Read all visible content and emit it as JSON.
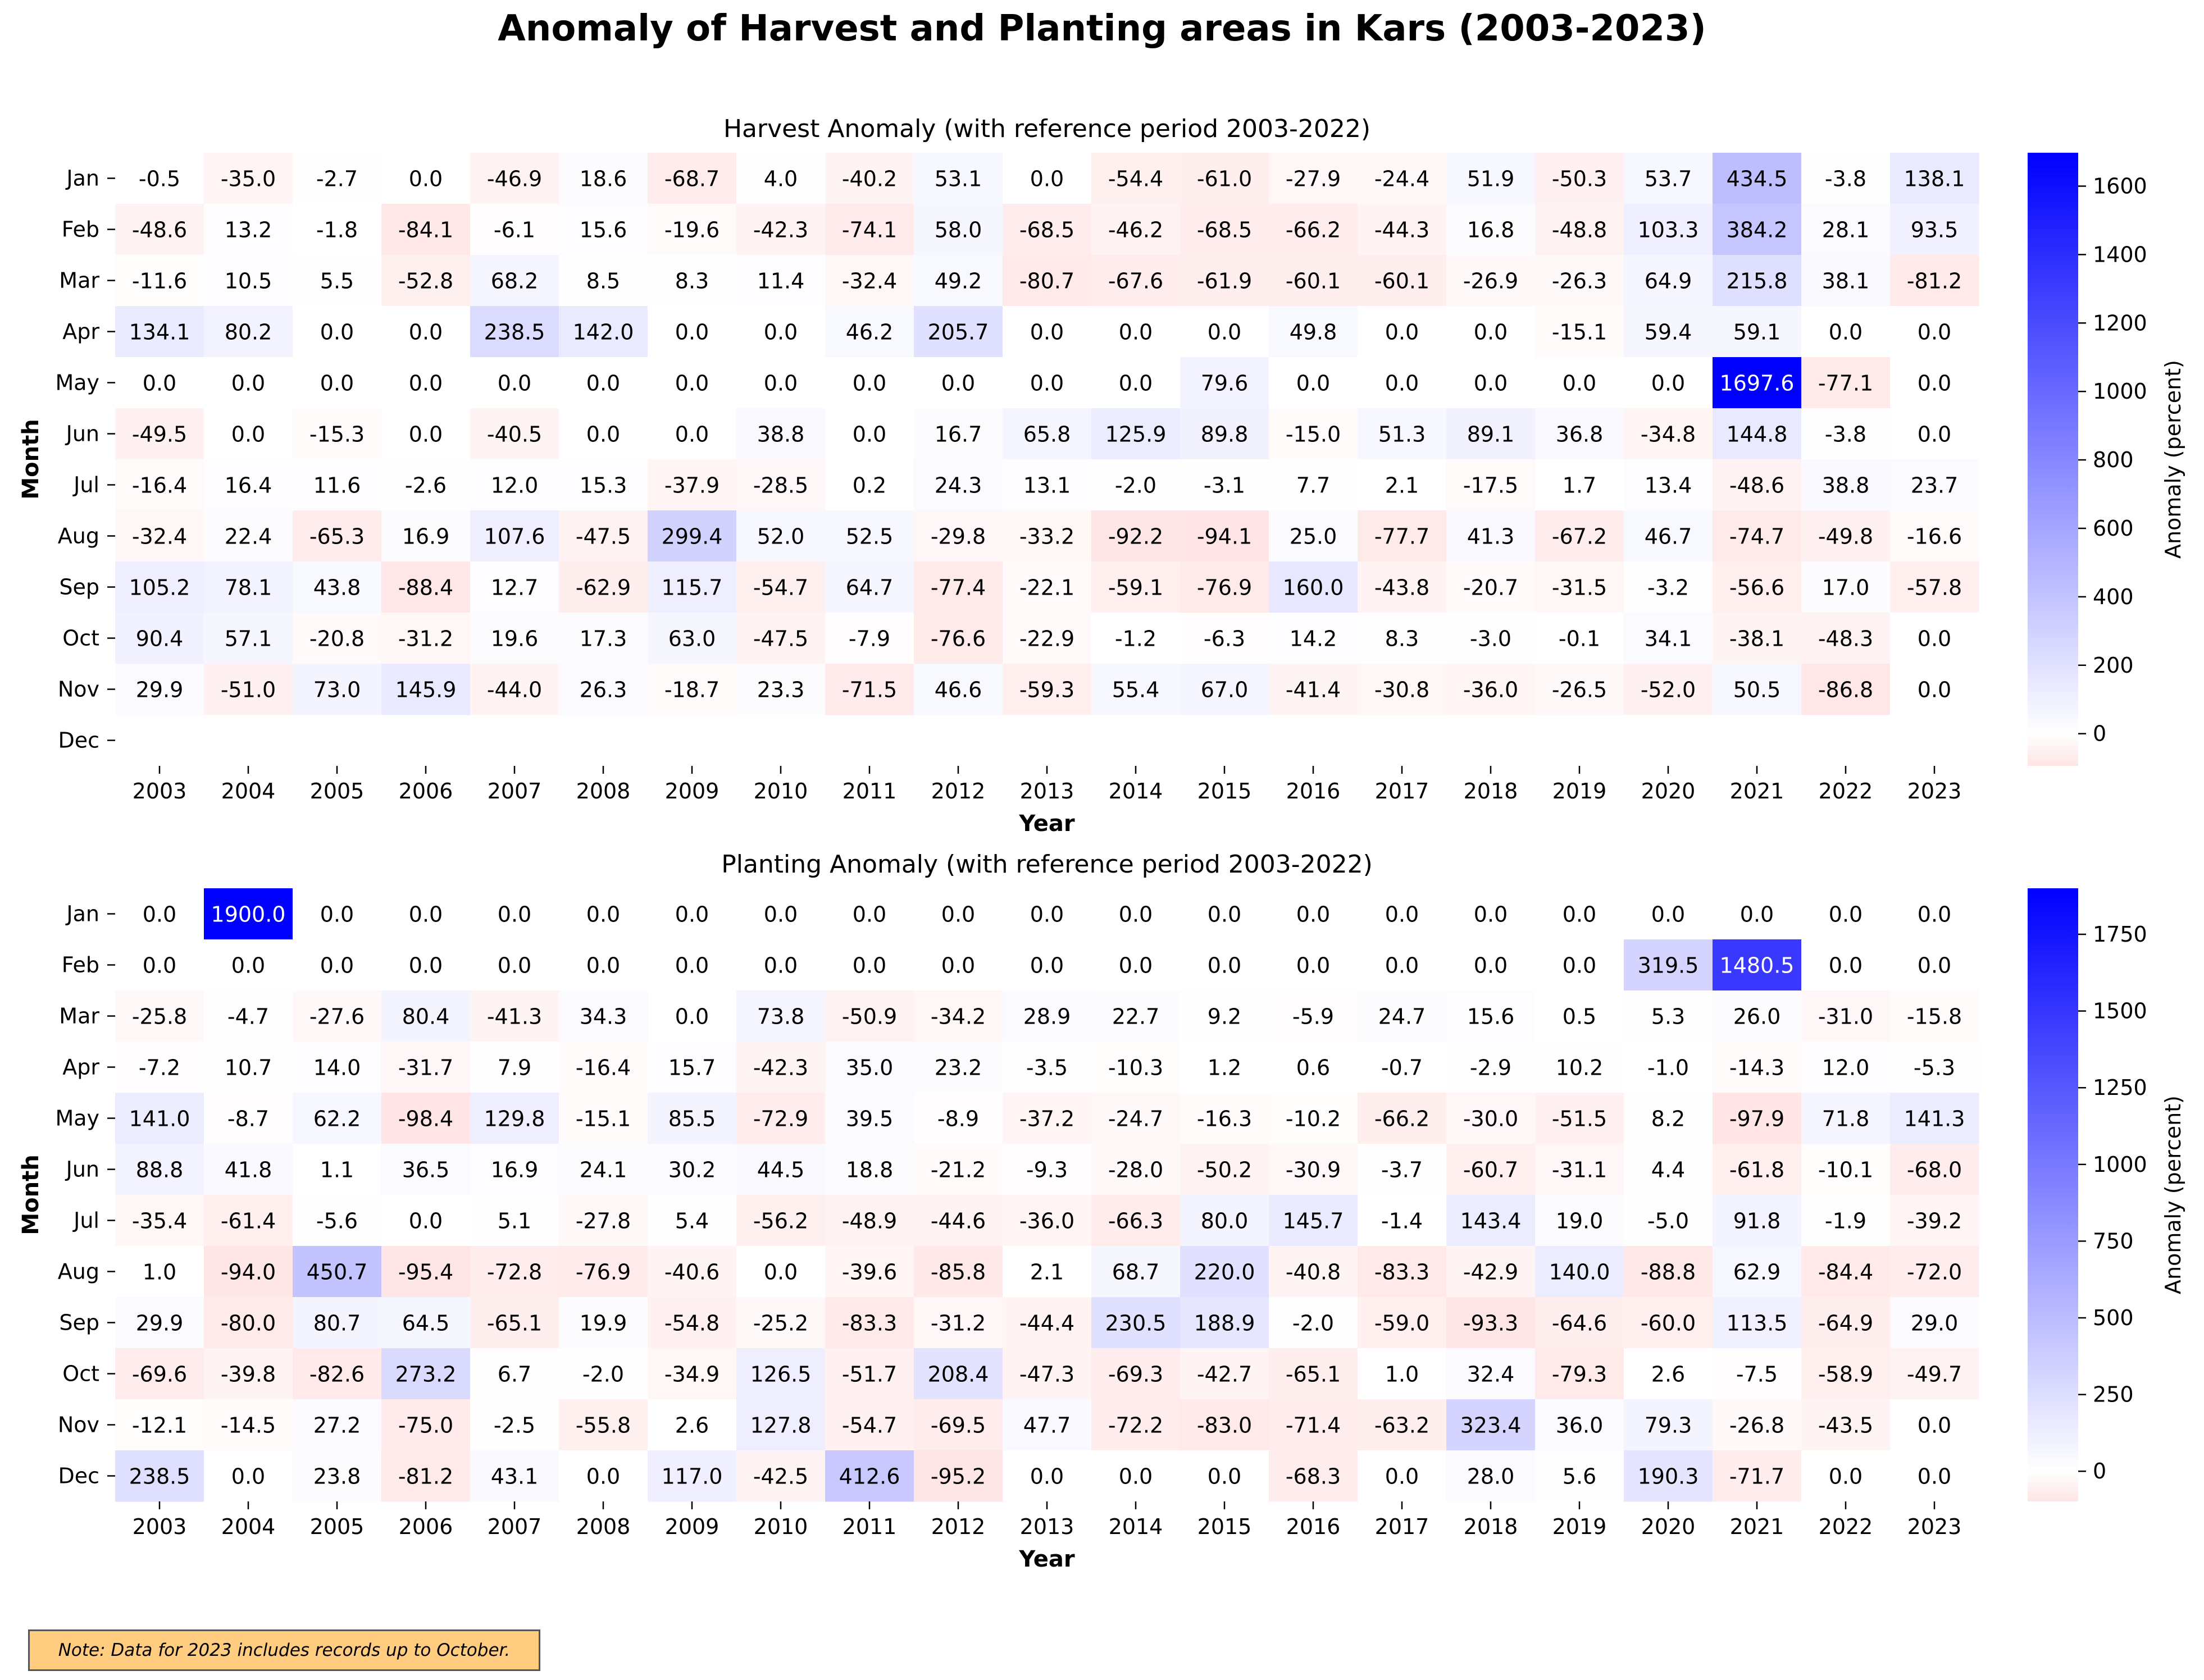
{
  "title": "Anomaly of Harvest and Planting areas in Kars (2003-2023)",
  "note": "Note: Data for 2023 includes records up to October.",
  "colors": {
    "positive_max": "#0000ff",
    "neutral": "#ffffff",
    "negative_min": "#ffe5e5"
  },
  "chart_data": [
    {
      "type": "heatmap",
      "title": "Harvest Anomaly (with reference period 2003-2022)",
      "xlabel": "Year",
      "ylabel": "Month",
      "colorbar_label": "Anomaly (percent)",
      "colorbar_ticks": [
        0,
        200,
        400,
        600,
        800,
        1000,
        1200,
        1400,
        1600
      ],
      "vmin": -94.1,
      "vmax": 1697.6,
      "x": [
        "2003",
        "2004",
        "2005",
        "2006",
        "2007",
        "2008",
        "2009",
        "2010",
        "2011",
        "2012",
        "2013",
        "2014",
        "2015",
        "2016",
        "2017",
        "2018",
        "2019",
        "2020",
        "2021",
        "2022",
        "2023"
      ],
      "y": [
        "Jan",
        "Feb",
        "Mar",
        "Apr",
        "May",
        "Jun",
        "Jul",
        "Aug",
        "Sep",
        "Oct",
        "Nov",
        "Dec"
      ],
      "values": [
        [
          -0.5,
          -35.0,
          -2.7,
          0.0,
          -46.9,
          18.6,
          -68.7,
          4.0,
          -40.2,
          53.1,
          0.0,
          -54.4,
          -61.0,
          -27.9,
          -24.4,
          51.9,
          -50.3,
          53.7,
          434.5,
          -3.8,
          138.1
        ],
        [
          -48.6,
          13.2,
          -1.8,
          -84.1,
          -6.1,
          15.6,
          -19.6,
          -42.3,
          -74.1,
          58.0,
          -68.5,
          -46.2,
          -68.5,
          -66.2,
          -44.3,
          16.8,
          -48.8,
          103.3,
          384.2,
          28.1,
          93.5
        ],
        [
          -11.6,
          10.5,
          5.5,
          -52.8,
          68.2,
          8.5,
          8.3,
          11.4,
          -32.4,
          49.2,
          -80.7,
          -67.6,
          -61.9,
          -60.1,
          -60.1,
          -26.9,
          -26.3,
          64.9,
          215.8,
          38.1,
          -81.2
        ],
        [
          134.1,
          80.2,
          0.0,
          0.0,
          238.5,
          142.0,
          0.0,
          0.0,
          46.2,
          205.7,
          0.0,
          0.0,
          0.0,
          49.8,
          0.0,
          0.0,
          -15.1,
          59.4,
          59.1,
          0.0,
          0.0
        ],
        [
          0.0,
          0.0,
          0.0,
          0.0,
          0.0,
          0.0,
          0.0,
          0.0,
          0.0,
          0.0,
          0.0,
          0.0,
          79.6,
          0.0,
          0.0,
          0.0,
          0.0,
          0.0,
          1697.6,
          -77.1,
          0.0
        ],
        [
          -49.5,
          0.0,
          -15.3,
          0.0,
          -40.5,
          0.0,
          0.0,
          38.8,
          0.0,
          16.7,
          65.8,
          125.9,
          89.8,
          -15.0,
          51.3,
          89.1,
          36.8,
          -34.8,
          144.8,
          -3.8,
          0.0
        ],
        [
          -16.4,
          16.4,
          11.6,
          -2.6,
          12.0,
          15.3,
          -37.9,
          -28.5,
          0.2,
          24.3,
          13.1,
          -2.0,
          -3.1,
          7.7,
          2.1,
          -17.5,
          1.7,
          13.4,
          -48.6,
          38.8,
          23.7
        ],
        [
          -32.4,
          22.4,
          -65.3,
          16.9,
          107.6,
          -47.5,
          299.4,
          52.0,
          52.5,
          -29.8,
          -33.2,
          -92.2,
          -94.1,
          25.0,
          -77.7,
          41.3,
          -67.2,
          46.7,
          -74.7,
          -49.8,
          -16.6
        ],
        [
          105.2,
          78.1,
          43.8,
          -88.4,
          12.7,
          -62.9,
          115.7,
          -54.7,
          64.7,
          -77.4,
          -22.1,
          -59.1,
          -76.9,
          160.0,
          -43.8,
          -20.7,
          -31.5,
          -3.2,
          -56.6,
          17.0,
          -57.8
        ],
        [
          90.4,
          57.1,
          -20.8,
          -31.2,
          19.6,
          17.3,
          63.0,
          -47.5,
          -7.9,
          -76.6,
          -22.9,
          -1.2,
          -6.3,
          14.2,
          8.3,
          -3.0,
          -0.1,
          34.1,
          -38.1,
          -48.3,
          0.0
        ],
        [
          29.9,
          -51.0,
          73.0,
          145.9,
          -44.0,
          26.3,
          -18.7,
          23.3,
          -71.5,
          46.6,
          -59.3,
          55.4,
          67.0,
          -41.4,
          -30.8,
          -36.0,
          -26.5,
          -52.0,
          50.5,
          -86.8,
          0.0
        ],
        [
          null,
          null,
          null,
          null,
          null,
          null,
          null,
          null,
          null,
          null,
          null,
          null,
          null,
          null,
          null,
          null,
          null,
          null,
          null,
          null,
          null
        ]
      ]
    },
    {
      "type": "heatmap",
      "title": "Planting Anomaly (with reference period 2003-2022)",
      "xlabel": "Year",
      "ylabel": "Month",
      "colorbar_label": "Anomaly (percent)",
      "colorbar_ticks": [
        0,
        250,
        500,
        750,
        1000,
        1250,
        1500,
        1750
      ],
      "vmin": -98.4,
      "vmax": 1900.0,
      "x": [
        "2003",
        "2004",
        "2005",
        "2006",
        "2007",
        "2008",
        "2009",
        "2010",
        "2011",
        "2012",
        "2013",
        "2014",
        "2015",
        "2016",
        "2017",
        "2018",
        "2019",
        "2020",
        "2021",
        "2022",
        "2023"
      ],
      "y": [
        "Jan",
        "Feb",
        "Mar",
        "Apr",
        "May",
        "Jun",
        "Jul",
        "Aug",
        "Sep",
        "Oct",
        "Nov",
        "Dec"
      ],
      "values": [
        [
          0.0,
          1900.0,
          0.0,
          0.0,
          0.0,
          0.0,
          0.0,
          0.0,
          0.0,
          0.0,
          0.0,
          0.0,
          0.0,
          0.0,
          0.0,
          0.0,
          0.0,
          0.0,
          0.0,
          0.0,
          0.0
        ],
        [
          0.0,
          0.0,
          0.0,
          0.0,
          0.0,
          0.0,
          0.0,
          0.0,
          0.0,
          0.0,
          0.0,
          0.0,
          0.0,
          0.0,
          0.0,
          0.0,
          0.0,
          319.5,
          1480.5,
          0.0,
          0.0
        ],
        [
          -25.8,
          -4.7,
          -27.6,
          80.4,
          -41.3,
          34.3,
          0.0,
          73.8,
          -50.9,
          -34.2,
          28.9,
          22.7,
          9.2,
          -5.9,
          24.7,
          15.6,
          0.5,
          5.3,
          26.0,
          -31.0,
          -15.8
        ],
        [
          -7.2,
          10.7,
          14.0,
          -31.7,
          7.9,
          -16.4,
          15.7,
          -42.3,
          35.0,
          23.2,
          -3.5,
          -10.3,
          1.2,
          0.6,
          -0.7,
          -2.9,
          10.2,
          -1.0,
          -14.3,
          12.0,
          -5.3
        ],
        [
          141.0,
          -8.7,
          62.2,
          -98.4,
          129.8,
          -15.1,
          85.5,
          -72.9,
          39.5,
          -8.9,
          -37.2,
          -24.7,
          -16.3,
          -10.2,
          -66.2,
          -30.0,
          -51.5,
          8.2,
          -97.9,
          71.8,
          141.3
        ],
        [
          88.8,
          41.8,
          1.1,
          36.5,
          16.9,
          24.1,
          30.2,
          44.5,
          18.8,
          -21.2,
          -9.3,
          -28.0,
          -50.2,
          -30.9,
          -3.7,
          -60.7,
          -31.1,
          4.4,
          -61.8,
          -10.1,
          -68.0
        ],
        [
          -35.4,
          -61.4,
          -5.6,
          0.0,
          5.1,
          -27.8,
          5.4,
          -56.2,
          -48.9,
          -44.6,
          -36.0,
          -66.3,
          80.0,
          145.7,
          -1.4,
          143.4,
          19.0,
          -5.0,
          91.8,
          -1.9,
          -39.2
        ],
        [
          1.0,
          -94.0,
          450.7,
          -95.4,
          -72.8,
          -76.9,
          -40.6,
          0.0,
          -39.6,
          -85.8,
          2.1,
          68.7,
          220.0,
          -40.8,
          -83.3,
          -42.9,
          140.0,
          -88.8,
          62.9,
          -84.4,
          -72.0
        ],
        [
          29.9,
          -80.0,
          80.7,
          64.5,
          -65.1,
          19.9,
          -54.8,
          -25.2,
          -83.3,
          -31.2,
          -44.4,
          230.5,
          188.9,
          -2.0,
          -59.0,
          -93.3,
          -64.6,
          -60.0,
          113.5,
          -64.9,
          29.0
        ],
        [
          -69.6,
          -39.8,
          -82.6,
          273.2,
          6.7,
          -2.0,
          -34.9,
          126.5,
          -51.7,
          208.4,
          -47.3,
          -69.3,
          -42.7,
          -65.1,
          1.0,
          32.4,
          -79.3,
          2.6,
          -7.5,
          -58.9,
          -49.7
        ],
        [
          -12.1,
          -14.5,
          27.2,
          -75.0,
          -2.5,
          -55.8,
          2.6,
          127.8,
          -54.7,
          -69.5,
          47.7,
          -72.2,
          -83.0,
          -71.4,
          -63.2,
          323.4,
          36.0,
          79.3,
          -26.8,
          -43.5,
          0.0
        ],
        [
          238.5,
          0.0,
          23.8,
          -81.2,
          43.1,
          0.0,
          117.0,
          -42.5,
          412.6,
          -95.2,
          0.0,
          0.0,
          0.0,
          -68.3,
          0.0,
          28.0,
          5.6,
          190.3,
          -71.7,
          0.0,
          0.0
        ]
      ]
    }
  ]
}
